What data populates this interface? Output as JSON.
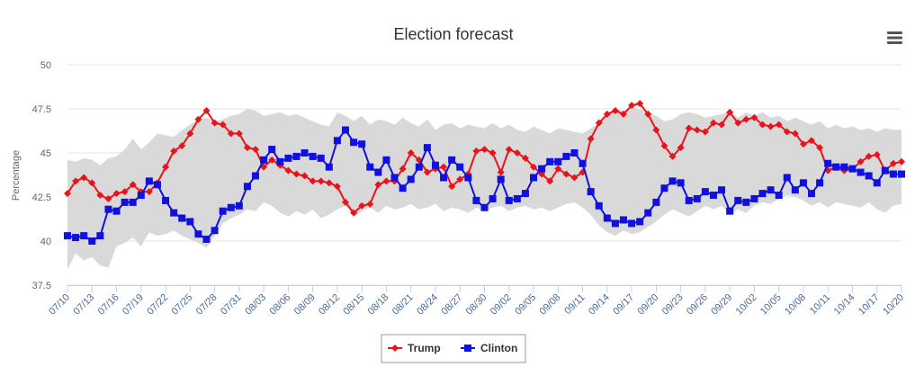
{
  "menu_icon": "hamburger-menu-icon",
  "chart_data": {
    "type": "line",
    "title": "Election forecast",
    "ylabel": "Percentage",
    "xlabel": "",
    "ylim": [
      37.5,
      50
    ],
    "yticks": [
      37.5,
      40,
      42.5,
      45,
      47.5,
      50
    ],
    "ytick_labels": [
      "37.5",
      "40",
      "42.5",
      "45",
      "47.5",
      "50"
    ],
    "grid": "horizontal",
    "legend_position": "bottom-center",
    "x": [
      "07/10",
      "07/11",
      "07/12",
      "07/13",
      "07/14",
      "07/15",
      "07/16",
      "07/17",
      "07/18",
      "07/19",
      "07/20",
      "07/21",
      "07/22",
      "07/23",
      "07/24",
      "07/25",
      "07/26",
      "07/27",
      "07/28",
      "07/29",
      "07/30",
      "07/31",
      "08/01",
      "08/02",
      "08/03",
      "08/04",
      "08/05",
      "08/06",
      "08/07",
      "08/08",
      "08/09",
      "08/10",
      "08/11",
      "08/12",
      "08/13",
      "08/14",
      "08/15",
      "08/16",
      "08/17",
      "08/18",
      "08/19",
      "08/20",
      "08/21",
      "08/22",
      "08/23",
      "08/24",
      "08/25",
      "08/26",
      "08/27",
      "08/28",
      "08/29",
      "08/30",
      "08/31",
      "09/01",
      "09/02",
      "09/03",
      "09/04",
      "09/05",
      "09/06",
      "09/07",
      "09/08",
      "09/09",
      "09/10",
      "09/11",
      "09/12",
      "09/13",
      "09/14",
      "09/15",
      "09/16",
      "09/17",
      "09/18",
      "09/19",
      "09/20",
      "09/21",
      "09/22",
      "09/23",
      "09/24",
      "09/25",
      "09/26",
      "09/27",
      "09/28",
      "09/29",
      "09/30",
      "10/01",
      "10/02",
      "10/03",
      "10/04",
      "10/05",
      "10/06",
      "10/07",
      "10/08",
      "10/09",
      "10/10",
      "10/11",
      "10/12",
      "10/13",
      "10/14",
      "10/15",
      "10/16",
      "10/17",
      "10/18",
      "10/19",
      "10/20"
    ],
    "x_tick_labels": [
      "07/10",
      "07/13",
      "07/16",
      "07/19",
      "07/22",
      "07/25",
      "07/28",
      "07/31",
      "08/03",
      "08/06",
      "08/09",
      "08/12",
      "08/15",
      "08/18",
      "08/21",
      "08/24",
      "08/27",
      "08/30",
      "09/02",
      "09/05",
      "09/08",
      "09/11",
      "09/14",
      "09/17",
      "09/20",
      "09/23",
      "09/26",
      "09/29",
      "10/02",
      "10/05",
      "10/08",
      "10/11",
      "10/14",
      "10/17",
      "10/20"
    ],
    "series": [
      {
        "name": "Trump",
        "color": "#e8141c",
        "marker": "diamond",
        "values": [
          42.7,
          43.4,
          43.6,
          43.3,
          42.6,
          42.4,
          42.7,
          42.8,
          43.2,
          42.8,
          42.8,
          43.3,
          44.2,
          45.1,
          45.4,
          46.1,
          46.9,
          47.4,
          46.7,
          46.6,
          46.1,
          46.1,
          45.3,
          45.2,
          44.2,
          44.6,
          44.3,
          44.0,
          43.8,
          43.7,
          43.4,
          43.4,
          43.3,
          43.1,
          42.2,
          41.6,
          42.0,
          42.1,
          43.2,
          43.4,
          43.4,
          44.1,
          45.0,
          44.6,
          43.9,
          44.1,
          44.2,
          43.1,
          43.5,
          43.8,
          45.1,
          45.2,
          45.0,
          43.9,
          45.2,
          45.0,
          44.7,
          44.2,
          43.8,
          43.4,
          44.1,
          43.8,
          43.6,
          43.9,
          45.8,
          46.7,
          47.2,
          47.4,
          47.2,
          47.7,
          47.8,
          47.2,
          46.3,
          45.4,
          44.8,
          45.3,
          46.4,
          46.3,
          46.2,
          46.7,
          46.6,
          47.3,
          46.7,
          46.9,
          47.0,
          46.6,
          46.5,
          46.6,
          46.2,
          46.1,
          45.5,
          45.7,
          45.3,
          44.0,
          44.2,
          44.0,
          44.1,
          44.5,
          44.8,
          44.9,
          44.0,
          44.4,
          44.5
        ]
      },
      {
        "name": "Clinton",
        "color": "#1010e0",
        "marker": "square",
        "values": [
          40.3,
          40.2,
          40.3,
          40.0,
          40.3,
          41.8,
          41.7,
          42.2,
          42.2,
          42.6,
          43.4,
          43.2,
          42.3,
          41.6,
          41.3,
          41.1,
          40.4,
          40.1,
          40.6,
          41.7,
          41.9,
          42.0,
          43.1,
          43.7,
          44.6,
          45.2,
          44.5,
          44.7,
          44.8,
          45.0,
          44.8,
          44.7,
          44.2,
          45.7,
          46.3,
          45.6,
          45.5,
          44.2,
          43.9,
          44.6,
          43.6,
          43.0,
          43.5,
          44.2,
          45.3,
          44.3,
          43.6,
          44.6,
          44.2,
          43.6,
          42.3,
          41.9,
          42.4,
          43.5,
          42.3,
          42.4,
          42.7,
          43.6,
          44.1,
          44.5,
          44.5,
          44.8,
          45.0,
          44.4,
          42.8,
          42.0,
          41.3,
          41.0,
          41.2,
          41.0,
          41.1,
          41.6,
          42.2,
          43.0,
          43.4,
          43.3,
          42.3,
          42.4,
          42.8,
          42.6,
          42.9,
          41.7,
          42.3,
          42.2,
          42.4,
          42.7,
          42.9,
          42.6,
          43.6,
          42.9,
          43.3,
          42.7,
          43.3,
          44.4,
          44.2,
          44.2,
          44.1,
          43.9,
          43.7,
          43.3,
          44.0,
          43.8,
          43.8
        ]
      }
    ],
    "band": {
      "color": "#d9d9d9",
      "upper": [
        44.6,
        44.5,
        44.7,
        44.6,
        44.3,
        44.7,
        44.8,
        45.2,
        45.8,
        45.2,
        45.6,
        46.1,
        46.0,
        45.9,
        46.3,
        46.6,
        46.9,
        47.0,
        46.8,
        46.9,
        47.1,
        47.2,
        47.5,
        47.4,
        47.1,
        47.2,
        47.3,
        47.1,
        47.2,
        47.0,
        46.8,
        46.6,
        46.5,
        47.3,
        47.1,
        46.8,
        47.1,
        46.6,
        46.9,
        46.8,
        46.6,
        47.0,
        46.7,
        46.5,
        46.9,
        46.3,
        46.6,
        46.7,
        46.4,
        46.6,
        46.5,
        46.4,
        46.7,
        46.4,
        46.6,
        46.3,
        46.2,
        46.5,
        46.3,
        46.1,
        46.4,
        46.3,
        46.2,
        46.1,
        46.4,
        46.7,
        47.1,
        47.5,
        47.4,
        47.6,
        47.5,
        47.3,
        47.1,
        46.8,
        46.9,
        47.2,
        47.3,
        47.2,
        47.0,
        47.1,
        47.2,
        47.4,
        47.0,
        47.3,
        47.1,
        47.3,
        47.0,
        47.1,
        46.8,
        47.0,
        46.8,
        46.6,
        46.8,
        46.4,
        46.6,
        46.4,
        46.5,
        46.3,
        46.4,
        46.2,
        46.4,
        46.3,
        46.3
      ],
      "lower": [
        38.4,
        39.3,
        38.9,
        39.1,
        38.6,
        38.5,
        39.7,
        39.9,
        40.2,
        39.7,
        40.5,
        40.3,
        40.4,
        40.6,
        40.3,
        40.1,
        39.9,
        39.6,
        40.3,
        41.0,
        41.3,
        41.5,
        41.8,
        41.7,
        42.2,
        42.0,
        41.6,
        41.4,
        41.7,
        41.5,
        41.8,
        41.3,
        41.5,
        41.8,
        42.0,
        41.4,
        41.7,
        41.9,
        41.6,
        42.0,
        41.8,
        41.9,
        42.1,
        41.8,
        41.9,
        42.1,
        41.7,
        41.9,
        41.8,
        41.6,
        41.9,
        41.7,
        41.9,
        42.0,
        41.7,
        41.9,
        42.0,
        41.8,
        41.9,
        41.7,
        41.9,
        42.1,
        42.2,
        41.9,
        41.5,
        40.9,
        40.5,
        40.3,
        40.6,
        40.4,
        40.5,
        40.8,
        41.1,
        41.5,
        41.8,
        41.6,
        41.4,
        41.7,
        42.0,
        41.8,
        42.0,
        41.5,
        41.8,
        41.6,
        42.0,
        42.2,
        42.1,
        42.4,
        42.6,
        42.5,
        42.3,
        42.0,
        42.2,
        41.9,
        42.2,
        42.1,
        42.0,
        41.9,
        42.2,
        41.8,
        41.6,
        42.0,
        42.1
      ]
    }
  }
}
